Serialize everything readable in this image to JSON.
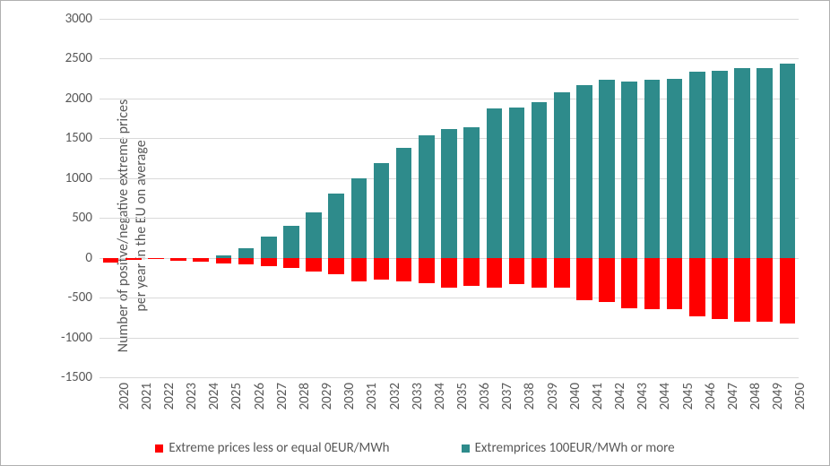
{
  "chart": {
    "type": "bar-stacked-signed",
    "y_axis": {
      "title_line1": "Number of positve/negative extreme prices",
      "title_line2": "per year in the EU on average",
      "min": -1500,
      "max": 3000,
      "tick_step": 500,
      "ticks": [
        -1500,
        -1000,
        -500,
        0,
        500,
        1000,
        1500,
        2000,
        2500,
        3000
      ],
      "label_fontsize": 15,
      "title_fontsize": 16,
      "grid_color": "#d9d9d9",
      "text_color": "#595959"
    },
    "categories": [
      "2020",
      "2021",
      "2022",
      "2023",
      "2024",
      "2025",
      "2026",
      "2027",
      "2028",
      "2029",
      "2030",
      "2031",
      "2032",
      "2033",
      "2034",
      "2035",
      "2036",
      "2037",
      "2038",
      "2039",
      "2040",
      "2041",
      "2042",
      "2043",
      "2044",
      "2045",
      "2046",
      "2047",
      "2048",
      "2049",
      "2050"
    ],
    "series": [
      {
        "name": "Extreme prices  less or equal 0EUR/MWh",
        "color": "#ff0000",
        "values": [
          -60,
          -30,
          -20,
          -40,
          -50,
          -70,
          -80,
          -100,
          -130,
          -170,
          -210,
          -300,
          -270,
          -300,
          -320,
          -380,
          -350,
          -380,
          -330,
          -380,
          -370,
          -530,
          -560,
          -630,
          -640,
          -650,
          -740,
          -770,
          -800,
          -800,
          -830
        ]
      },
      {
        "name": "Extremprices  100EUR/MWh or more",
        "color": "#2e8b8b",
        "values": [
          0,
          0,
          0,
          0,
          0,
          30,
          120,
          270,
          400,
          570,
          810,
          1000,
          1190,
          1380,
          1540,
          1620,
          1640,
          1870,
          1890,
          1950,
          2080,
          2170,
          2240,
          2210,
          2230,
          2250,
          2340,
          2350,
          2380,
          2380,
          2440
        ]
      }
    ],
    "bar_gap_ratio": 0.3,
    "background_color": "#ffffff",
    "border_color": "#b0b0b0",
    "legend": {
      "position": "bottom",
      "fontsize": 15
    }
  }
}
